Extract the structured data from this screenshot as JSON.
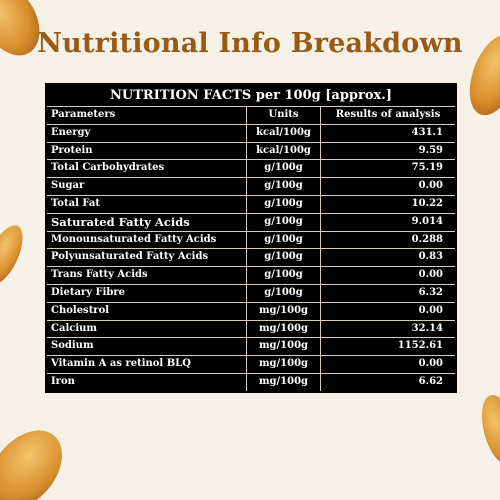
{
  "header": {
    "title": "Nutritional Info Breakdown"
  },
  "table": {
    "caption": "NUTRITION FACTS per 100g [approx.]",
    "columns": [
      "Parameters",
      "Units",
      "Results of analysis"
    ],
    "rows": [
      [
        "Energy",
        "kcal/100g",
        "431.1"
      ],
      [
        "Protein",
        "kcal/100g",
        "9.59"
      ],
      [
        "Total Carbohydrates",
        "g/100g",
        "75.19"
      ],
      [
        "Sugar",
        "g/100g",
        "0.00"
      ],
      [
        "Total Fat",
        "g/100g",
        "10.22"
      ],
      [
        "Saturated Fatty Acids",
        "g/100g",
        "9.014"
      ],
      [
        "Monounsaturated Fatty Acids",
        "g/100g",
        "0.288"
      ],
      [
        "Polyunsaturated Fatty Acids",
        "g/100g",
        "0.83"
      ],
      [
        "Trans Fatty Acids",
        "g/100g",
        "0.00"
      ],
      [
        "Dietary Fibre",
        "g/100g",
        "6.32"
      ],
      [
        "Cholestrol",
        "mg/100g",
        "0.00"
      ],
      [
        "Calcium",
        "mg/100g",
        "32.14"
      ],
      [
        "Sodium",
        "mg/100g",
        "1152.61"
      ],
      [
        "Vitamin A as retinol BLQ",
        "mg/100g",
        "0.00"
      ],
      [
        "Iron",
        "mg/100g",
        "6.62"
      ]
    ]
  }
}
